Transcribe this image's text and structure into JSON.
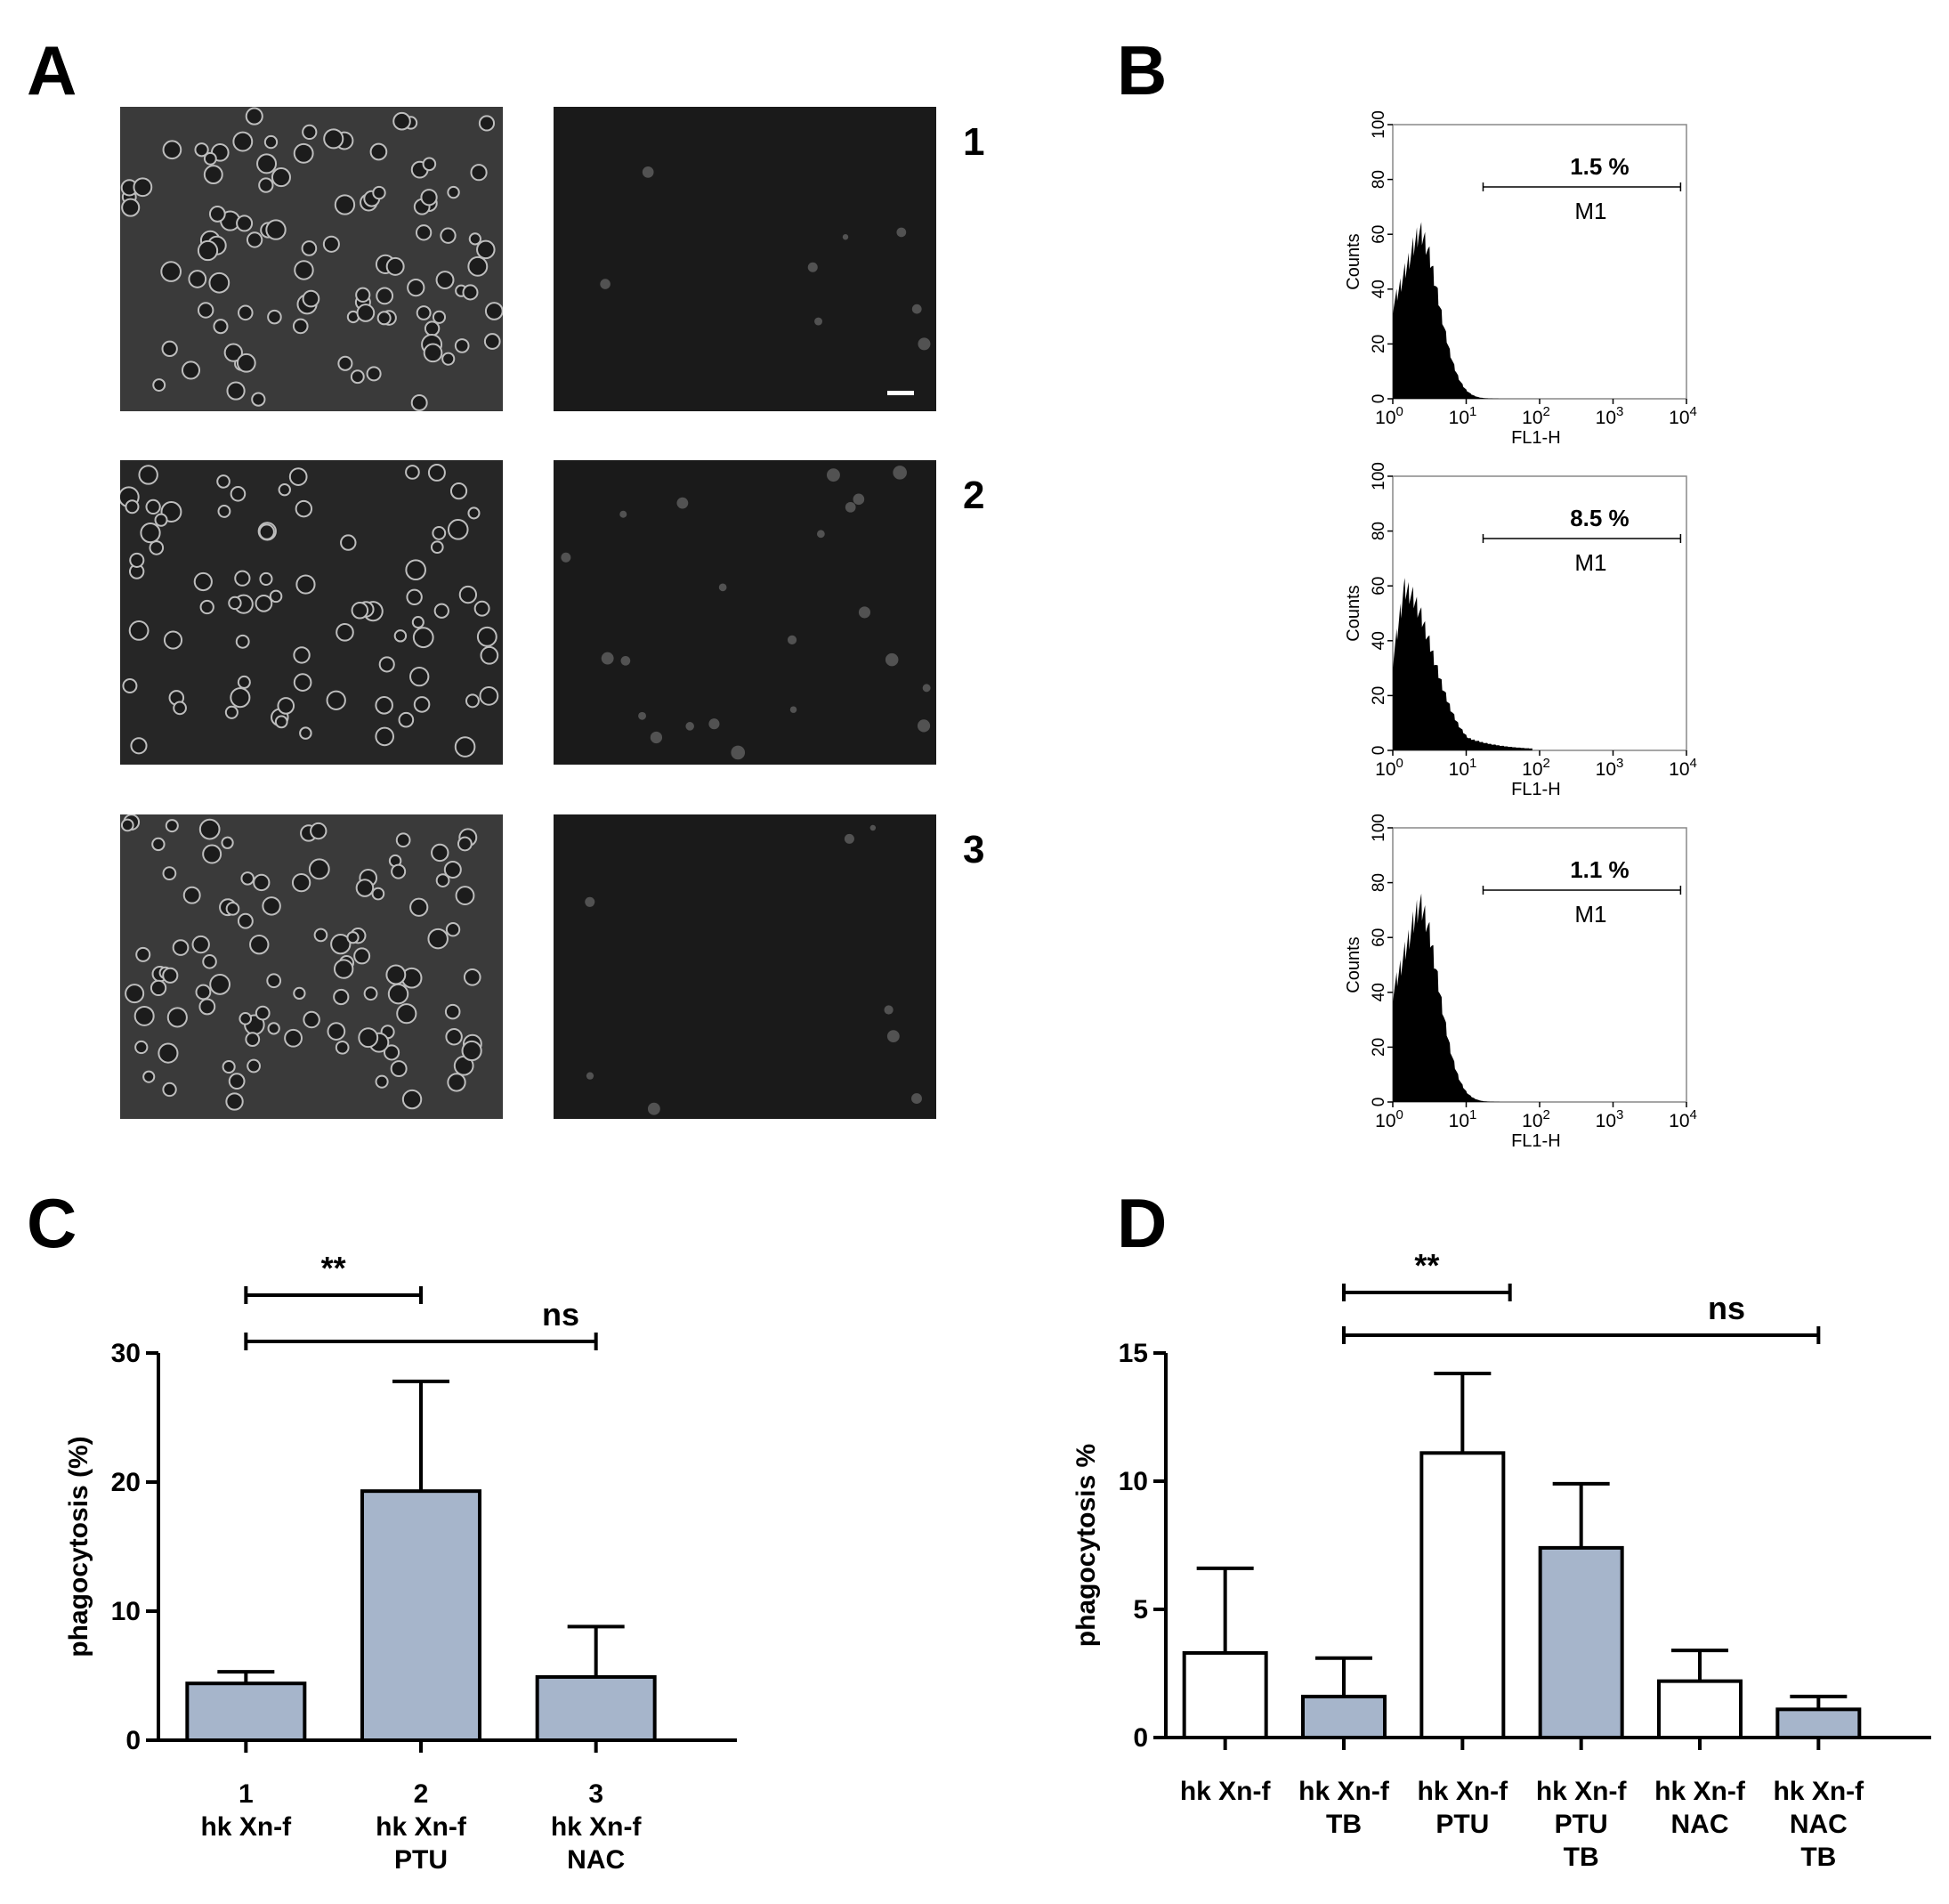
{
  "panels": {
    "a": "A",
    "b": "B",
    "c": "C",
    "d": "D"
  },
  "micrograph_rows": [
    "1",
    "2",
    "3"
  ],
  "flow": {
    "ylabel": "Counts",
    "xlabel": "FL1-H",
    "gate_label": "M1",
    "y_ticks": [
      "0",
      "20",
      "40",
      "60",
      "80",
      "100"
    ],
    "x_tick_base": "10",
    "x_tick_exps": [
      "0",
      "1",
      "2",
      "3",
      "4"
    ],
    "histograms": [
      {
        "percent": "1.5 %",
        "peak_counts": 61,
        "peak_log": 0.35
      },
      {
        "percent": "8.5 %",
        "peak_counts": 59,
        "peak_log": 0.15
      },
      {
        "percent": "1.1 %",
        "peak_counts": 72,
        "peak_log": 0.35
      }
    ]
  },
  "chart_data": [
    {
      "type": "bar",
      "panel": "C",
      "ylabel": "phagocytosis (%)",
      "ylim": [
        0,
        30
      ],
      "y_ticks": [
        "0",
        "10",
        "20",
        "30"
      ],
      "categories": [
        [
          "1",
          "hk Xn-f"
        ],
        [
          "2",
          "hk Xn-f",
          "PTU"
        ],
        [
          "3",
          "hk Xn-f",
          "NAC"
        ]
      ],
      "values": [
        4.4,
        19.3,
        4.9
      ],
      "errors": [
        0.9,
        8.5,
        3.9
      ],
      "fill": [
        "#a6b5cb",
        "#a6b5cb",
        "#a6b5cb"
      ],
      "significance": [
        {
          "from": 0,
          "to": 1,
          "label": "**"
        },
        {
          "from": 0,
          "to": 2,
          "label": "ns"
        }
      ]
    },
    {
      "type": "bar",
      "panel": "D",
      "ylabel": "phagocytosis %",
      "ylim": [
        0,
        15
      ],
      "y_ticks": [
        "0",
        "5",
        "10",
        "15"
      ],
      "categories": [
        [
          "hk Xn-f"
        ],
        [
          "hk Xn-f",
          "TB"
        ],
        [
          "hk Xn-f",
          "PTU"
        ],
        [
          "hk Xn-f",
          "PTU",
          "TB"
        ],
        [
          "hk Xn-f",
          "NAC"
        ],
        [
          "hk Xn-f",
          "NAC",
          "TB"
        ]
      ],
      "values": [
        3.3,
        1.6,
        11.1,
        7.4,
        2.2,
        1.1
      ],
      "errors": [
        3.3,
        1.5,
        3.1,
        2.5,
        1.2,
        0.5
      ],
      "fill": [
        "#ffffff",
        "#a6b5cb",
        "#ffffff",
        "#a6b5cb",
        "#ffffff",
        "#a6b5cb"
      ],
      "significance": [
        {
          "from": 1,
          "to": 3,
          "label": "**"
        },
        {
          "from": 1,
          "to": 5,
          "label": "ns"
        }
      ]
    }
  ]
}
